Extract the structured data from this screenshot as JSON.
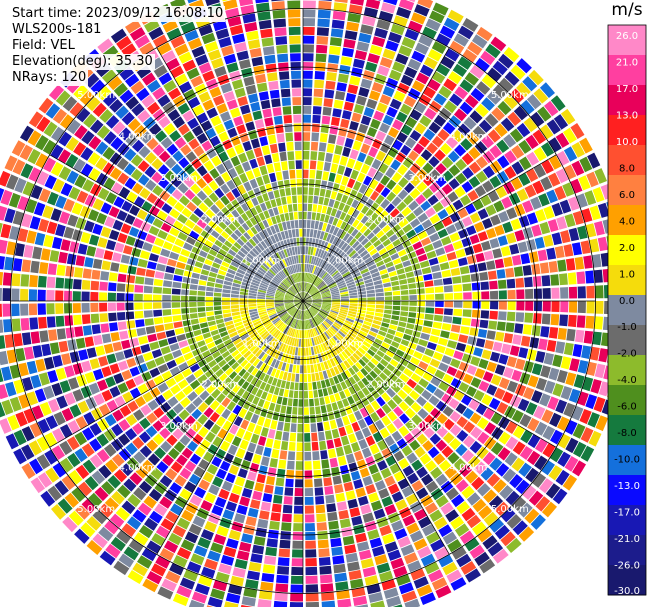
{
  "header": {
    "start_time": "Start time: 2023/09/12 16:08:10",
    "instrument": "WLS200s-181",
    "field": "Field: VEL",
    "elevation": "Elevation(deg): 35.30",
    "nrays": "NRays: 120"
  },
  "colorbar": {
    "unit_label": "m/s",
    "colors": [
      "#19196e",
      "#1c1c8c",
      "#1818b4",
      "#0a0aff",
      "#1470dc",
      "#157a3e",
      "#4f8f1e",
      "#8dbb2c",
      "#6c6c6c",
      "#7e8aa0",
      "#f5dc0c",
      "#ffff00",
      "#ffa000",
      "#ff8040",
      "#ff5030",
      "#ff2020",
      "#e8005a",
      "#ff3fa0",
      "#ff88c8"
    ],
    "ticks": [
      "26.0",
      "21.0",
      "17.0",
      "13.0",
      "10.0",
      "8.0",
      "6.0",
      "4.0",
      "2.0",
      "1.0",
      "0.0",
      "-1.0",
      "-2.0",
      "-4.0",
      "-6.0",
      "-8.0",
      "-10.0",
      "-13.0",
      "-17.0",
      "-21.0",
      "-26.0",
      "-30.0"
    ]
  },
  "chart_data": {
    "type": "heatmap",
    "subtype": "ppi_polar",
    "field": "VEL",
    "units": "m/s",
    "nrays": 120,
    "range_rings_km": [
      1,
      2,
      3,
      4,
      5
    ],
    "range_labels": [
      "1.00km",
      "2.00km",
      "3.00km",
      "4.00km",
      "5.00km"
    ],
    "radial_lines": 12,
    "bands_km": [
      {
        "from": 0.0,
        "to": 0.5,
        "pattern": "green"
      },
      {
        "from": 0.5,
        "to": 1.4,
        "pattern": "gray-yellow"
      },
      {
        "from": 1.4,
        "to": 2.1,
        "pattern": "green-yellow"
      },
      {
        "from": 2.1,
        "to": 2.9,
        "pattern": "mixed"
      },
      {
        "from": 2.9,
        "to": 5.6,
        "pattern": "noise"
      }
    ]
  }
}
